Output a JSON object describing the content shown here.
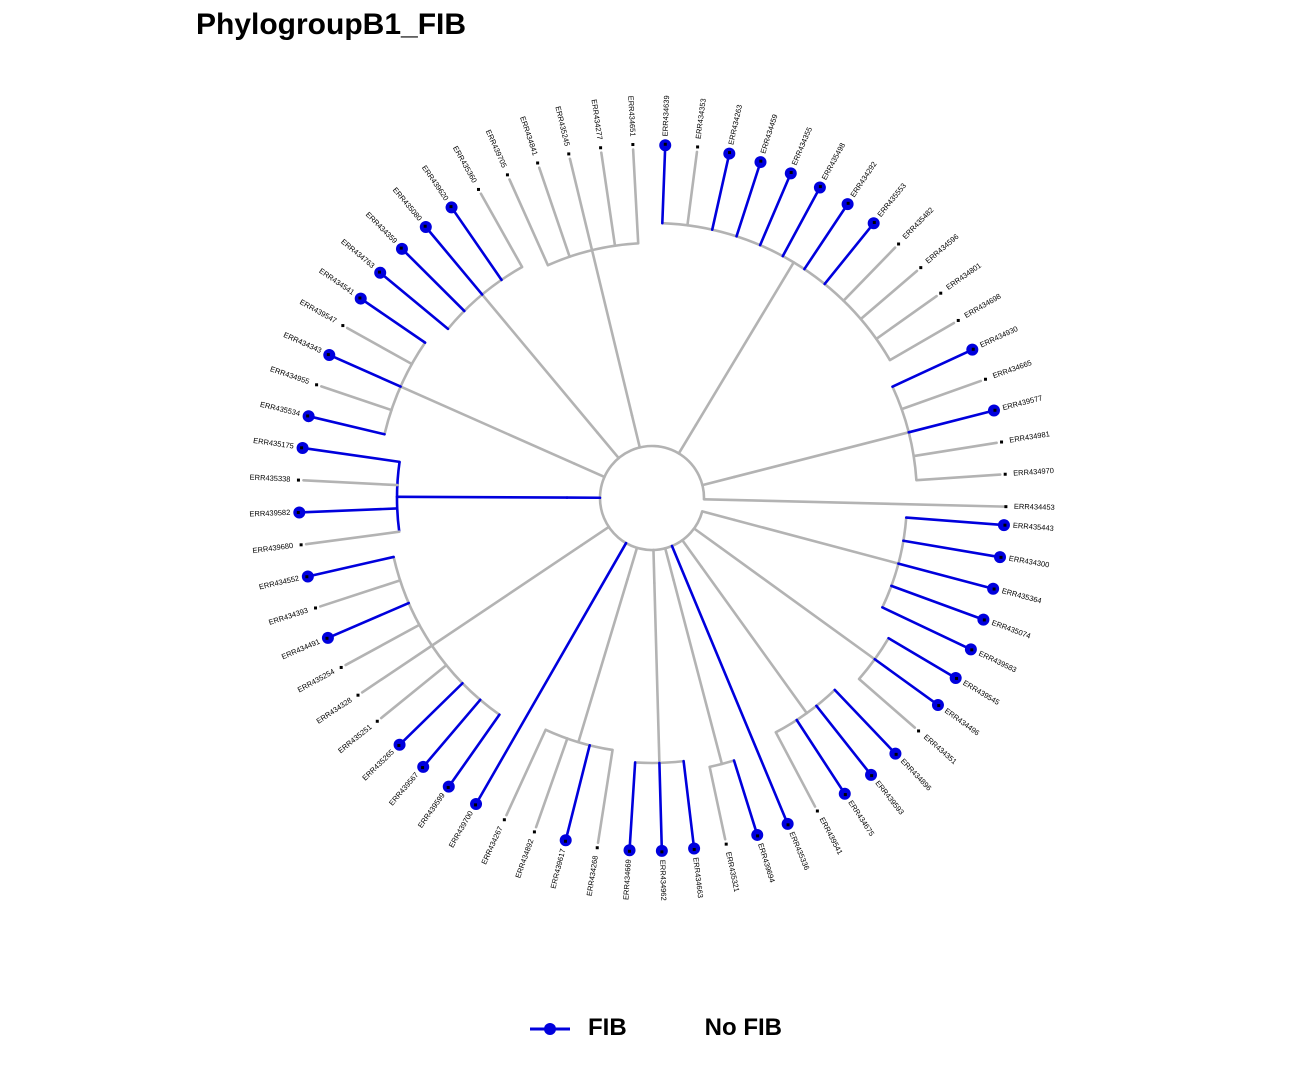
{
  "title": "PhylogroupB1_FIB",
  "colors": {
    "fib": "#0000dd",
    "no_fib": "#b3b3b3",
    "tip_dot": "#000000"
  },
  "legend": [
    {
      "label": "FIB",
      "key": "line-with-dot"
    },
    {
      "label": "No FIB",
      "key": "none"
    }
  ],
  "tips": [
    {
      "label": "ERR434453",
      "fib": false
    },
    {
      "label": "ERR434970",
      "fib": false
    },
    {
      "label": "ERR434981",
      "fib": false
    },
    {
      "label": "ERR439577",
      "fib": true
    },
    {
      "label": "ERR434665",
      "fib": false
    },
    {
      "label": "ERR434930",
      "fib": true
    },
    {
      "label": "ERR434698",
      "fib": false
    },
    {
      "label": "ERR434801",
      "fib": false
    },
    {
      "label": "ERR434596",
      "fib": false
    },
    {
      "label": "ERR435482",
      "fib": false
    },
    {
      "label": "ERR435553",
      "fib": true
    },
    {
      "label": "ERR434292",
      "fib": true
    },
    {
      "label": "ERR435498",
      "fib": true
    },
    {
      "label": "ERR434355",
      "fib": true
    },
    {
      "label": "ERR434459",
      "fib": true
    },
    {
      "label": "ERR434263",
      "fib": true
    },
    {
      "label": "ERR434353",
      "fib": false
    },
    {
      "label": "ERR434639",
      "fib": true
    },
    {
      "label": "ERR434651",
      "fib": false
    },
    {
      "label": "ERR434277",
      "fib": false
    },
    {
      "label": "ERR435245",
      "fib": false
    },
    {
      "label": "ERR434841",
      "fib": false
    },
    {
      "label": "ERR439705",
      "fib": false
    },
    {
      "label": "ERR435360",
      "fib": false
    },
    {
      "label": "ERR439620",
      "fib": true
    },
    {
      "label": "ERR435080",
      "fib": true
    },
    {
      "label": "ERR434359",
      "fib": true
    },
    {
      "label": "ERR434763",
      "fib": true
    },
    {
      "label": "ERR434541",
      "fib": true
    },
    {
      "label": "ERR439547",
      "fib": false
    },
    {
      "label": "ERR434343",
      "fib": true
    },
    {
      "label": "ERR434955",
      "fib": false
    },
    {
      "label": "ERR435534",
      "fib": true
    },
    {
      "label": "ERR435175",
      "fib": true
    },
    {
      "label": "ERR435338",
      "fib": false
    },
    {
      "label": "ERR439582",
      "fib": true
    },
    {
      "label": "ERR439680",
      "fib": false
    },
    {
      "label": "ERR434552",
      "fib": true
    },
    {
      "label": "ERR434393",
      "fib": false
    },
    {
      "label": "ERR434491",
      "fib": true
    },
    {
      "label": "ERR435254",
      "fib": false
    },
    {
      "label": "ERR434328",
      "fib": false
    },
    {
      "label": "ERR435251",
      "fib": false
    },
    {
      "label": "ERR435265",
      "fib": true
    },
    {
      "label": "ERR439567",
      "fib": true
    },
    {
      "label": "ERR439599",
      "fib": true
    },
    {
      "label": "ERR439700",
      "fib": true
    },
    {
      "label": "ERR434267",
      "fib": false
    },
    {
      "label": "ERR434892",
      "fib": false
    },
    {
      "label": "ERR439617",
      "fib": true
    },
    {
      "label": "ERR434268",
      "fib": false
    },
    {
      "label": "ERR434669",
      "fib": true
    },
    {
      "label": "ERR434962",
      "fib": true
    },
    {
      "label": "ERR434663",
      "fib": true
    },
    {
      "label": "ERR435321",
      "fib": false
    },
    {
      "label": "ERR439694",
      "fib": true
    },
    {
      "label": "ERR435336",
      "fib": true
    },
    {
      "label": "ERR439541",
      "fib": false
    },
    {
      "label": "ERR434675",
      "fib": true
    },
    {
      "label": "ERR439593",
      "fib": true
    },
    {
      "label": "ERR434896",
      "fib": true
    },
    {
      "label": "ERR434351",
      "fib": false
    },
    {
      "label": "ERR434496",
      "fib": true
    },
    {
      "label": "ERR439545",
      "fib": true
    },
    {
      "label": "ERR439583",
      "fib": true
    },
    {
      "label": "ERR435074",
      "fib": true
    },
    {
      "label": "ERR435364",
      "fib": true
    },
    {
      "label": "ERR434300",
      "fib": true
    },
    {
      "label": "ERR435443",
      "fib": true
    }
  ],
  "clades": [
    {
      "members": [
        0
      ],
      "fib": false
    },
    {
      "members": [
        1,
        2,
        3,
        4,
        5
      ],
      "fib": false
    },
    {
      "members": [
        6,
        7,
        8,
        9,
        10,
        11,
        12,
        13,
        14,
        15,
        16,
        17
      ],
      "fib": false
    },
    {
      "members": [
        18,
        19,
        20,
        21,
        22
      ],
      "fib": false
    },
    {
      "members": [
        23,
        24,
        25,
        26,
        27
      ],
      "fib": false
    },
    {
      "members": [
        28,
        29,
        30,
        31,
        32
      ],
      "fib": false
    },
    {
      "members": [
        33,
        34,
        35,
        36
      ],
      "fib": true
    },
    {
      "members": [
        37,
        38,
        39,
        40,
        41,
        42,
        43,
        44,
        45
      ],
      "fib": false
    },
    {
      "members": [
        46
      ],
      "fib": true
    },
    {
      "members": [
        47,
        48,
        49,
        50
      ],
      "fib": false
    },
    {
      "members": [
        51,
        52,
        53
      ],
      "fib": false
    },
    {
      "members": [
        54,
        55
      ],
      "fib": false
    },
    {
      "members": [
        56
      ],
      "fib": true
    },
    {
      "members": [
        57,
        58,
        59,
        60
      ],
      "fib": false
    },
    {
      "members": [
        61,
        62,
        63
      ],
      "fib": false
    },
    {
      "members": [
        64,
        65,
        66,
        67,
        68
      ],
      "fib": false
    }
  ]
}
